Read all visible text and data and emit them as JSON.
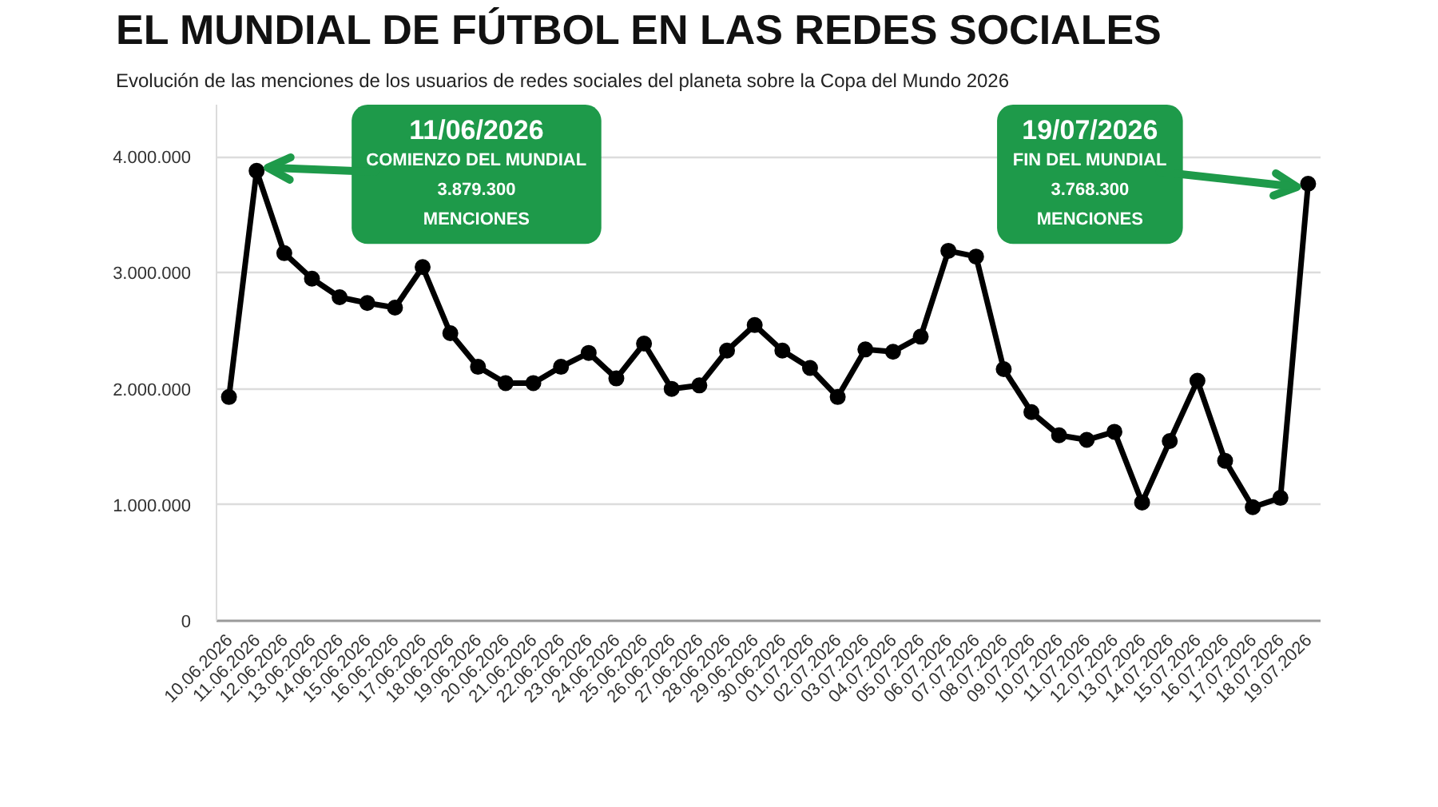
{
  "chart_data": {
    "type": "line",
    "title": "EL MUNDIAL DE FÚTBOL EN LAS REDES SOCIALES",
    "subtitle": "Evolución de las menciones de los usuarios de redes sociales del planeta sobre la Copa del Mundo 2026",
    "categories": [
      "10.06.2026",
      "11.06.2026",
      "12.06.2026",
      "13.06.2026",
      "14.06.2026",
      "15.06.2026",
      "16.06.2026",
      "17.06.2026",
      "18.06.2026",
      "19.06.2026",
      "20.06.2026",
      "21.06.2026",
      "22.06.2026",
      "23.06.2026",
      "24.06.2026",
      "25.06.2026",
      "26.06.2026",
      "27.06.2026",
      "28.06.2026",
      "29.06.2026",
      "30.06.2026",
      "01.07.2026",
      "02.07.2026",
      "03.07.2026",
      "04.07.2026",
      "05.07.2026",
      "06.07.2026",
      "07.07.2026",
      "08.07.2026",
      "09.07.2026",
      "10.07.2026",
      "11.07.2026",
      "12.07.2026",
      "13.07.2026",
      "14.07.2026",
      "15.07.2026",
      "16.07.2026",
      "17.07.2026",
      "18.07.2026",
      "19.07.2026"
    ],
    "series": [
      {
        "color": "#000000",
        "values": [
          1930000,
          3879300,
          3170000,
          2950000,
          2790000,
          2740000,
          2700000,
          3050000,
          2480000,
          2190000,
          2050000,
          2050000,
          2190000,
          2310000,
          2090000,
          2390000,
          2000000,
          2030000,
          2330000,
          2550000,
          2330000,
          2180000,
          1930000,
          2340000,
          2320000,
          2450000,
          3190000,
          3140000,
          2170000,
          1800000,
          1600000,
          1560000,
          1630000,
          1020000,
          1550000,
          2070000,
          1380000,
          980000,
          1060000,
          3768300
        ]
      }
    ],
    "ylim": [
      0,
      4450000
    ],
    "yticks": [
      0,
      {
        "value": 1000000,
        "label": "1.000.000"
      },
      {
        "value": 2000000,
        "label": "2.000.000"
      },
      {
        "value": 3000000,
        "label": "3.000.000"
      },
      {
        "value": 4000000,
        "label": "4.000.000"
      }
    ],
    "grid": "y",
    "marker": "circle",
    "line_style": "solid",
    "annotations": [
      {
        "text": "11/06/2026\nCOMIENZO DEL MUNDIAL\n3.879.300\nMENCIONES",
        "x": "11.06.2026",
        "y": 3879300
      },
      {
        "text": "19/07/2026\nFIN DEL MUNDIAL\n3.768.300\nMENCIONES",
        "x": "19.07.2026",
        "y": 3768300
      }
    ]
  }
}
